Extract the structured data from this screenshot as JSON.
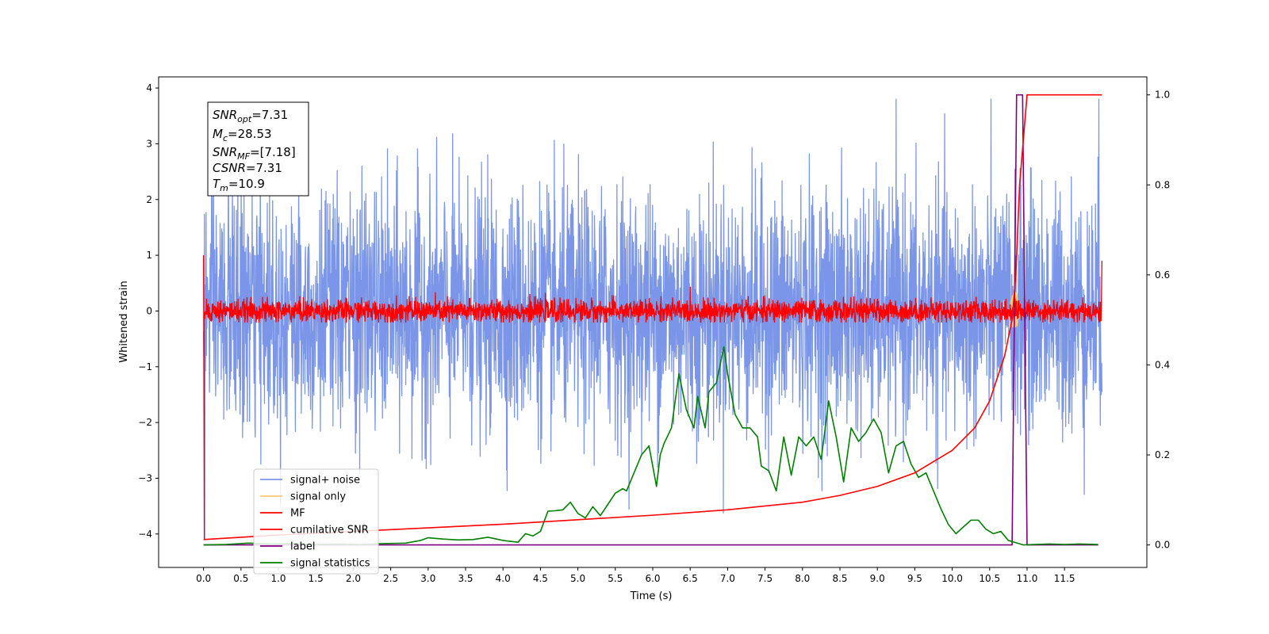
{
  "chart_data": {
    "type": "line",
    "xlabel": "Time (s)",
    "ylabel": "Whitened strain",
    "xlim": [
      -0.6,
      12.6
    ],
    "ylim": [
      -4.6,
      4.2
    ],
    "ylim_right": [
      -0.05,
      1.04
    ],
    "x_ticks": [
      "0.0",
      "0.5",
      "1.0",
      "1.5",
      "2.0",
      "2.5",
      "3.0",
      "3.5",
      "4.0",
      "4.5",
      "5.0",
      "5.5",
      "6.0",
      "6.5",
      "7.0",
      "7.5",
      "8.0",
      "8.5",
      "9.0",
      "9.5",
      "10.0",
      "10.5",
      "11.0",
      "11.5"
    ],
    "y_ticks_left": [
      "4",
      "3",
      "2",
      "1",
      "0",
      "−1",
      "−2",
      "−3",
      "−4"
    ],
    "y_ticks_right": [
      "1.0",
      "0.8",
      "0.6",
      "0.4",
      "0.2",
      "0.0"
    ],
    "stats_box": {
      "snr_opt": {
        "base": "SNR",
        "sub": "opt",
        "value": "=7.31"
      },
      "mc": {
        "base": "M",
        "sub": "c",
        "value": "=28.53"
      },
      "snr_mf": {
        "base": "SNR",
        "sub": "MF",
        "value": "=[7.18]"
      },
      "csnr": {
        "base": "CSNR",
        "sub": "",
        "value": "=7.31"
      },
      "tm": {
        "base": "T",
        "sub": "m",
        "value": "=10.9"
      }
    },
    "legend": {
      "position": "lower-left",
      "entries": [
        {
          "name": "signal+ noise",
          "color": "#7b96e8"
        },
        {
          "name": "signal only",
          "color": "#f8c880"
        },
        {
          "name": "MF",
          "color": "#ff0000"
        },
        {
          "name": "cumilative SNR",
          "color": "#ff0000"
        },
        {
          "name": "label",
          "color": "#800080"
        },
        {
          "name": "signal statistics",
          "color": "#008000"
        }
      ]
    },
    "series": [
      {
        "name": "signal+ noise",
        "axis": "left",
        "style": "noise band",
        "x_range": [
          0.0,
          12.0
        ],
        "typical_range": [
          -2.2,
          2.3
        ],
        "extremes": [
          -4.1,
          3.8
        ],
        "center": 0.0
      },
      {
        "name": "signal only",
        "axis": "left",
        "style": "chirp burst",
        "x_range": [
          10.75,
          10.92
        ],
        "peak_amplitude": 0.35
      },
      {
        "name": "MF",
        "axis": "left",
        "style": "noise band",
        "x_range": [
          0.0,
          12.0
        ],
        "typical_range": [
          -0.2,
          0.25
        ],
        "extremes": [
          -4.1,
          1.0
        ],
        "center": 0.0
      },
      {
        "name": "cumilative SNR",
        "axis": "right",
        "x": [
          0.0,
          1.0,
          2.0,
          3.0,
          4.0,
          5.0,
          6.0,
          7.0,
          8.0,
          8.5,
          9.0,
          9.5,
          10.0,
          10.3,
          10.5,
          10.7,
          10.8,
          10.85,
          10.9,
          11.0,
          11.5,
          12.0
        ],
        "values": [
          0.012,
          0.022,
          0.03,
          0.038,
          0.046,
          0.056,
          0.066,
          0.078,
          0.095,
          0.11,
          0.13,
          0.16,
          0.21,
          0.26,
          0.32,
          0.42,
          0.5,
          0.6,
          0.8,
          1.0,
          1.0,
          1.0
        ]
      },
      {
        "name": "label",
        "axis": "right",
        "x": [
          0.0,
          10.8,
          10.86,
          10.94,
          11.0,
          11.95
        ],
        "values": [
          0.0,
          0.0,
          1.0,
          1.0,
          0.0,
          0.0
        ]
      },
      {
        "name": "signal statistics",
        "axis": "right",
        "x": [
          0.0,
          0.3,
          0.6,
          0.9,
          1.2,
          1.5,
          1.8,
          2.1,
          2.4,
          2.7,
          2.9,
          3.0,
          3.2,
          3.4,
          3.6,
          3.8,
          4.0,
          4.2,
          4.3,
          4.4,
          4.5,
          4.6,
          4.7,
          4.8,
          4.9,
          5.0,
          5.1,
          5.2,
          5.3,
          5.4,
          5.5,
          5.6,
          5.65,
          5.75,
          5.85,
          5.95,
          6.05,
          6.1,
          6.15,
          6.25,
          6.35,
          6.45,
          6.55,
          6.6,
          6.7,
          6.75,
          6.85,
          6.95,
          7.0,
          7.1,
          7.2,
          7.3,
          7.4,
          7.45,
          7.55,
          7.65,
          7.75,
          7.85,
          7.95,
          8.05,
          8.15,
          8.25,
          8.35,
          8.45,
          8.55,
          8.65,
          8.75,
          8.85,
          8.95,
          9.05,
          9.15,
          9.25,
          9.35,
          9.45,
          9.55,
          9.65,
          9.75,
          9.85,
          9.95,
          10.05,
          10.15,
          10.25,
          10.35,
          10.45,
          10.55,
          10.65,
          10.75,
          10.85,
          10.95,
          11.1,
          11.3,
          11.5,
          11.7,
          11.95
        ],
        "values": [
          0.0,
          0.001,
          0.004,
          0.002,
          0.003,
          0.001,
          0.002,
          0.001,
          0.003,
          0.004,
          0.01,
          0.016,
          0.013,
          0.011,
          0.012,
          0.017,
          0.01,
          0.006,
          0.025,
          0.02,
          0.03,
          0.075,
          0.076,
          0.078,
          0.095,
          0.07,
          0.06,
          0.085,
          0.065,
          0.09,
          0.115,
          0.125,
          0.12,
          0.16,
          0.2,
          0.22,
          0.13,
          0.2,
          0.225,
          0.26,
          0.38,
          0.3,
          0.26,
          0.33,
          0.26,
          0.34,
          0.36,
          0.44,
          0.38,
          0.29,
          0.26,
          0.26,
          0.24,
          0.175,
          0.165,
          0.12,
          0.24,
          0.155,
          0.24,
          0.22,
          0.24,
          0.19,
          0.32,
          0.24,
          0.14,
          0.26,
          0.23,
          0.25,
          0.28,
          0.25,
          0.16,
          0.22,
          0.23,
          0.18,
          0.15,
          0.16,
          0.12,
          0.08,
          0.045,
          0.025,
          0.04,
          0.055,
          0.055,
          0.035,
          0.025,
          0.03,
          0.01,
          0.005,
          0.0,
          0.001,
          0.002,
          0.001,
          0.002,
          0.001
        ]
      }
    ]
  }
}
